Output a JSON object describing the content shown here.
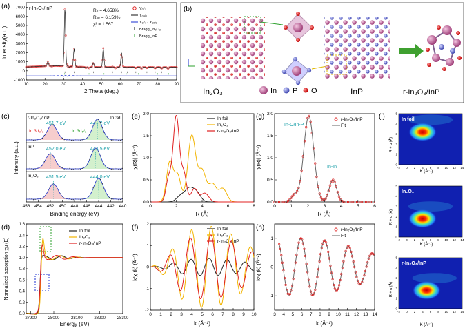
{
  "panels": {
    "a": {
      "letter": "(a)",
      "sample": "r-In₂O₃/InP",
      "stats": [
        "Rₚ = 4.658%",
        "Rᵤₚ = 6.159%",
        "χ² = 1.567"
      ],
      "legend": [
        "Yₒᵇₛ",
        "Yₒₐₗₒ",
        "Yₒᵇₛ - Yₒₐₗₒ",
        "Bragg_In₂O₃",
        "Bragg_InP"
      ],
      "xlabel": "2 Theta (deg.)",
      "ylabel": "Intensity(a.u.)"
    },
    "b": {
      "letter": "(b)",
      "labels": [
        "In₂O₃",
        "InP",
        "r-In₂O₃/InP"
      ],
      "legend": [
        "In",
        "P",
        "O"
      ]
    },
    "c": {
      "letter": "(c)",
      "sample": "r-In₂O₃/InP",
      "core": "In 3d",
      "peaks_rin": [
        "451.7 eV",
        "444.2 eV"
      ],
      "orbitals": [
        "In 3d₃/₂",
        "In 3d₅/₂"
      ],
      "peaks_inp": [
        "452.0 eV",
        "444.5 eV"
      ],
      "peaks_in2o3": [
        "451.5 eV",
        "444.0 eV"
      ],
      "row_labels": [
        "InP",
        "In₂O₃"
      ],
      "xlabel": "Binding energy (eV)",
      "ylabel": "Intensity (a.u.)"
    },
    "d": {
      "letter": "(d)",
      "legend": [
        "In foil",
        "In₂O₃",
        "r-In₂O₃/InP"
      ],
      "xlabel": "Energy (eV)",
      "ylabel": "Normalized absorption χμ (E)"
    },
    "e": {
      "letter": "(e)",
      "legend": [
        "In foil",
        "In₂O₃",
        "r-In₂O₃/InP"
      ],
      "xlabel": "R (Å)",
      "ylabel": "|χ(R)| (Å⁻³)"
    },
    "f": {
      "letter": "(f)",
      "legend": [
        "In foil",
        "In₂O₃",
        "r-In₂O₃/InP"
      ],
      "xlabel": "k (Å⁻¹)",
      "ylabel": "k²χ (k) (Å⁻²)"
    },
    "g": {
      "letter": "(g)",
      "legend": [
        "r-In₂O₃/InP",
        "Fit"
      ],
      "annotations": [
        "In-O/In-P",
        "In-In"
      ],
      "xlabel": "R (Å)",
      "ylabel": "|χ(R)| (Å⁻³)"
    },
    "h": {
      "letter": "(h)",
      "legend": [
        "r-In₂O₃/InP",
        "Fit"
      ],
      "xlabel": "k (Å⁻¹)",
      "ylabel": "k²χ (k) (Å⁻²)"
    },
    "i": {
      "letter": "(i)",
      "maps": [
        "In foil",
        "In₂O₃",
        "r-In₂O₃/InP"
      ],
      "xlabel": "K (Å⁻¹)",
      "ylabel": "R + α (Å)"
    }
  },
  "colors": {
    "red": "#e02020",
    "black": "#222222",
    "gold": "#f2b400",
    "blue": "#1a2fd0",
    "green": "#2ca02c",
    "cyan": "#1a9fa8"
  },
  "chart_data": [
    {
      "id": "a",
      "type": "line",
      "title": "",
      "xlabel": "2 Theta (deg.)",
      "ylabel": "Intensity(a.u.)",
      "xlim": [
        10,
        90
      ],
      "ylim": [
        -1000,
        7500
      ],
      "x_ticks": [
        10,
        20,
        30,
        40,
        50,
        60,
        70,
        80,
        90
      ],
      "y_ticks": [
        -1000,
        0,
        1000,
        2000,
        3000,
        4000,
        5000,
        6000,
        7000
      ],
      "series": [
        {
          "name": "Y_obs",
          "peaks": [
            [
              21.5,
              900
            ],
            [
              30.6,
              6900
            ],
            [
              35.5,
              2400
            ],
            [
              45.7,
              900
            ],
            [
              51.0,
              2500
            ],
            [
              60.7,
              2000
            ]
          ],
          "baseline": 400
        },
        {
          "name": "Y_obs-Y_calc",
          "values": "flat at -550"
        }
      ]
    },
    {
      "id": "c",
      "type": "line",
      "title": "In 3d",
      "xlabel": "Binding energy (eV)",
      "ylabel": "Intensity (a.u.)",
      "xlim": [
        456,
        440
      ],
      "x_ticks": [
        456,
        454,
        452,
        450,
        448,
        446,
        444,
        442,
        440
      ],
      "series": [
        {
          "name": "r-In2O3/InP",
          "values": [
            451.7,
            444.2
          ]
        },
        {
          "name": "InP",
          "values": [
            452.0,
            444.5
          ]
        },
        {
          "name": "In2O3",
          "values": [
            451.5,
            444.0
          ]
        }
      ]
    },
    {
      "id": "d",
      "type": "line",
      "xlabel": "Energy (eV)",
      "ylabel": "Normalized absorption",
      "xlim": [
        27900,
        28300
      ],
      "ylim": [
        0,
        1.6
      ],
      "x_ticks": [
        27900,
        28000,
        28100,
        28200,
        28300
      ],
      "y_ticks": [
        0.0,
        0.2,
        0.4,
        0.6,
        0.8,
        1.0,
        1.2,
        1.4,
        1.6
      ],
      "series": [
        {
          "name": "In foil",
          "edge": 27940,
          "peak": 1.05
        },
        {
          "name": "In2O3",
          "edge": 27945,
          "peak": 1.4
        },
        {
          "name": "r-In2O3/InP",
          "edge": 27942,
          "peak": 1.3
        }
      ]
    },
    {
      "id": "e",
      "type": "line",
      "xlabel": "R (Å)",
      "ylabel": "|χ(R)|",
      "xlim": [
        0,
        8
      ],
      "ylim": [
        0,
        2.0
      ],
      "x_ticks": [
        0,
        2,
        4,
        6,
        8
      ],
      "y_ticks": [
        0.0,
        0.5,
        1.0,
        1.5,
        2.0
      ],
      "series": [
        {
          "name": "In foil",
          "peak_r": 3.0,
          "peak": 0.3
        },
        {
          "name": "In2O3",
          "peak_r": 3.2,
          "peak": 1.5
        },
        {
          "name": "r-In2O3/InP",
          "peak_r": 2.0,
          "peak": 1.95
        }
      ]
    },
    {
      "id": "f",
      "type": "line",
      "xlabel": "k (Å⁻¹)",
      "ylabel": "k²χ(k)",
      "xlim": [
        0,
        10
      ],
      "ylim": [
        -2,
        2
      ],
      "x_ticks": [
        0,
        1,
        2,
        3,
        4,
        5,
        6,
        7,
        8,
        9,
        10
      ],
      "y_ticks": [
        -2,
        -1,
        0,
        1,
        2
      ],
      "series": [
        {
          "name": "In foil",
          "amp": 0.4
        },
        {
          "name": "In2O3",
          "amp": 1.9
        },
        {
          "name": "r-In2O3/InP",
          "amp": 1.5
        }
      ]
    },
    {
      "id": "g",
      "type": "line",
      "xlabel": "R (Å)",
      "ylabel": "|χ(R)|",
      "xlim": [
        0,
        6
      ],
      "ylim": [
        0,
        2.0
      ],
      "x_ticks": [
        0,
        1,
        2,
        3,
        4,
        5,
        6
      ],
      "y_ticks": [
        0.0,
        0.5,
        1.0,
        1.5,
        2.0
      ],
      "series": [
        {
          "name": "r-In2O3/InP",
          "peaks": [
            [
              2.05,
              1.95
            ],
            [
              3.5,
              0.5
            ]
          ]
        },
        {
          "name": "Fit",
          "peaks": [
            [
              2.05,
              1.95
            ],
            [
              3.5,
              0.5
            ]
          ]
        }
      ]
    },
    {
      "id": "h",
      "type": "line",
      "xlabel": "k (Å⁻¹)",
      "ylabel": "k²χ(k)",
      "xlim": [
        3,
        14
      ],
      "ylim": [
        -1.5,
        1.5
      ],
      "x_ticks": [
        3,
        4,
        5,
        6,
        7,
        8,
        9,
        10,
        11,
        12,
        13,
        14
      ],
      "y_ticks": [
        -1,
        0,
        1
      ],
      "series": [
        {
          "name": "r-In2O3/InP",
          "amp": 1.0
        },
        {
          "name": "Fit",
          "amp": 1.0
        }
      ]
    },
    {
      "id": "i",
      "type": "heatmap",
      "xlabel": "K (Å⁻¹)",
      "ylabel": "R + α (Å)",
      "xlim": [
        -2,
        14
      ],
      "ylim": [
        0,
        5
      ],
      "x_ticks": [
        -2,
        0,
        2,
        4,
        6,
        8,
        10,
        12,
        14
      ],
      "y_ticks": [
        0,
        1,
        2,
        3,
        4,
        5
      ],
      "maps": [
        {
          "name": "In foil",
          "hot": [
            4,
            3.2
          ]
        },
        {
          "name": "In2O3",
          "hot": [
            4,
            1.8
          ]
        },
        {
          "name": "r-In2O3/InP",
          "hot": [
            5,
            1.8
          ]
        }
      ]
    }
  ]
}
